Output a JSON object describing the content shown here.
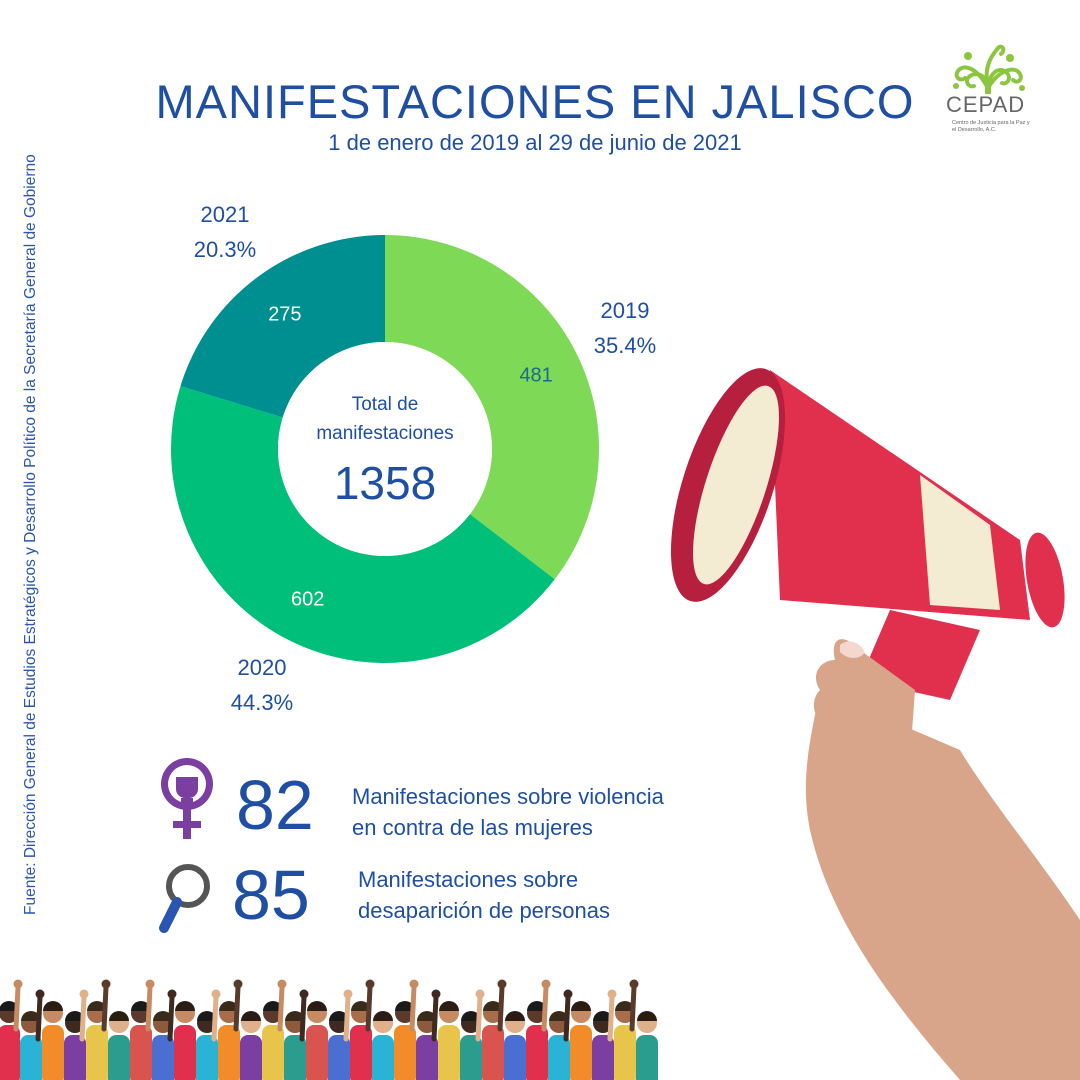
{
  "title": "MANIFESTACIONES EN JALISCO",
  "subtitle": "1 de enero de 2019 al 29 de junio de 2021",
  "source": "Fuente: Dirección General de Estudios Estratégicos y Desarrollo Político de la Secretaría General de Gobierno",
  "logo": {
    "name": "CEPAD",
    "tagline": "Centro de Justicia para la Paz y el Desarrollo, A.C."
  },
  "chart_data": {
    "type": "pie",
    "categories": [
      "2019",
      "2020",
      "2021"
    ],
    "values": [
      481,
      602,
      275
    ],
    "percent_labels": [
      "35.4%",
      "44.3%",
      "20.3%"
    ],
    "colors": [
      "#7ed957",
      "#00bf7a",
      "#008f90"
    ],
    "center_label": "Total de manifestaciones",
    "center_value": "1358"
  },
  "stats": [
    {
      "value": "82",
      "label_line1": "Manifestaciones sobre violencia",
      "label_line2": "en contra de las mujeres",
      "icon": "feminist-fist-icon"
    },
    {
      "value": "85",
      "label_line1": "Manifestaciones sobre",
      "label_line2": "desaparición de personas",
      "icon": "magnifying-glass-icon"
    }
  ],
  "colors": {
    "text": "#1f4fa3",
    "megaphone_red": "#e0304e",
    "megaphone_cream": "#f4ecd2",
    "skin": "#d9a58a",
    "icon_purple": "#7a3fa0"
  }
}
